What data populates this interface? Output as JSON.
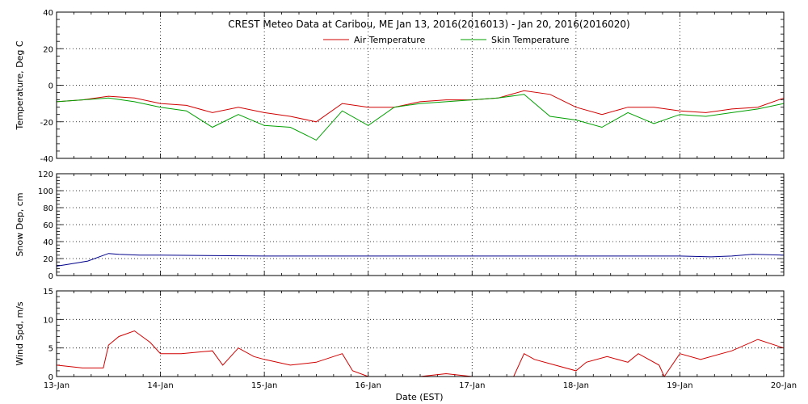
{
  "chart_data": {
    "type": "line",
    "title": "CREST Meteo Data at Caribou, ME   Jan 13, 2016(2016013) - Jan 20, 2016(2016020)",
    "xlabel": "Date (EST)",
    "x_ticks": [
      "13-Jan",
      "14-Jan",
      "15-Jan",
      "16-Jan",
      "17-Jan",
      "18-Jan",
      "19-Jan",
      "20-Jan"
    ],
    "grid": true,
    "legend_placement": "top-center",
    "panels": [
      {
        "ylabel": "Temperature, Deg C",
        "ylim": [
          -40,
          40
        ],
        "y_ticks": [
          -40,
          -20,
          0,
          20,
          40
        ],
        "series": [
          {
            "name": "Air Temperature",
            "color": "#d00000",
            "x": [
              0,
              0.25,
              0.5,
              0.75,
              1.0,
              1.25,
              1.5,
              1.75,
              2.0,
              2.25,
              2.5,
              2.75,
              3.0,
              3.25,
              3.5,
              3.75,
              4.0,
              4.25,
              4.5,
              4.75,
              5.0,
              5.25,
              5.5,
              5.75,
              6.0,
              6.25,
              6.5,
              6.75,
              7.0
            ],
            "y": [
              -9,
              -8,
              -6,
              -7,
              -10,
              -11,
              -15,
              -12,
              -15,
              -17,
              -20,
              -10,
              -12,
              -12,
              -9,
              -8,
              -8,
              -7,
              -3,
              -5,
              -12,
              -16,
              -12,
              -12,
              -14,
              -15,
              -13,
              -12,
              -7
            ]
          },
          {
            "name": "Skin Temperature",
            "color": "#00a000",
            "x": [
              0,
              0.25,
              0.5,
              0.75,
              1.0,
              1.25,
              1.5,
              1.75,
              2.0,
              2.25,
              2.5,
              2.75,
              3.0,
              3.25,
              3.5,
              3.75,
              4.0,
              4.25,
              4.5,
              4.75,
              5.0,
              5.25,
              5.5,
              5.75,
              6.0,
              6.25,
              6.5,
              6.75,
              7.0
            ],
            "y": [
              -9,
              -8,
              -7,
              -9,
              -12,
              -14,
              -23,
              -16,
              -22,
              -23,
              -30,
              -14,
              -22,
              -12,
              -10,
              -9,
              -8,
              -7,
              -5,
              -17,
              -19,
              -23,
              -15,
              -21,
              -16,
              -17,
              -15,
              -13,
              -10
            ]
          }
        ],
        "legend": true
      },
      {
        "ylabel": "Snow Dep, cm",
        "ylim": [
          0,
          120
        ],
        "y_ticks": [
          0,
          20,
          40,
          60,
          80,
          100,
          120
        ],
        "series": [
          {
            "name": "",
            "color": "#00008b",
            "x": [
              0,
              0.1,
              0.3,
              0.5,
              0.6,
              0.8,
              1.0,
              2.0,
              3.0,
              4.0,
              5.0,
              6.0,
              6.3,
              6.5,
              6.7,
              7.0
            ],
            "y": [
              11,
              13,
              17,
              26,
              25,
              24,
              24,
              23,
              23,
              23,
              23,
              23,
              22,
              23,
              25,
              24
            ]
          }
        ],
        "legend": false
      },
      {
        "ylabel": "Wind Spd, m/s",
        "ylim": [
          0,
          15
        ],
        "y_ticks": [
          0,
          5,
          10,
          15
        ],
        "series": [
          {
            "name": "",
            "color": "#d00000",
            "x": [
              0,
              0.25,
              0.45,
              0.5,
              0.6,
              0.75,
              0.9,
              1.0,
              1.2,
              1.5,
              1.6,
              1.75,
              1.9,
              2.0,
              2.25,
              2.5,
              2.75,
              2.85,
              3.0,
              3.25,
              3.5,
              3.75,
              4.0,
              4.25,
              4.4,
              4.5,
              4.6,
              4.8,
              5.0,
              5.1,
              5.3,
              5.5,
              5.6,
              5.8,
              5.85,
              6.0,
              6.2,
              6.5,
              6.75,
              7.0
            ],
            "y": [
              2,
              1.5,
              1.5,
              5.5,
              7,
              8,
              6,
              4,
              4,
              4.5,
              2,
              5,
              3.5,
              3,
              2,
              2.5,
              4,
              1,
              0,
              0,
              0,
              0.5,
              0,
              0,
              0,
              4,
              3,
              2,
              1,
              2.5,
              3.5,
              2.5,
              4,
              2,
              0,
              4,
              3,
              4.5,
              6.5,
              5
            ]
          }
        ],
        "legend": false
      }
    ]
  }
}
